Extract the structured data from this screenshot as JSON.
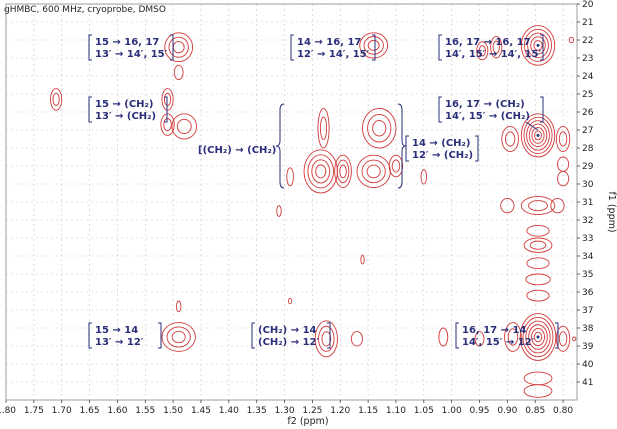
{
  "chart_data": {
    "type": "scatter",
    "title": "gHMBC, 600 MHz, cryoprobe, DMSO",
    "xlabel": "f2 (ppm)",
    "ylabel": "f1 (ppm)",
    "xlim": [
      1.8,
      0.775
    ],
    "ylim": [
      20,
      42
    ],
    "x_reversed": true,
    "y_reversed": true,
    "grid": true,
    "x_ticks": [
      "1.80",
      "1.75",
      "1.70",
      "1.65",
      "1.60",
      "1.55",
      "1.50",
      "1.45",
      "1.40",
      "1.35",
      "1.30",
      "1.25",
      "1.20",
      "1.15",
      "1.10",
      "1.05",
      "1.00",
      "0.95",
      "0.90",
      "0.85",
      "0.80"
    ],
    "y_ticks": [
      "20",
      "21",
      "22",
      "23",
      "24",
      "25",
      "26",
      "27",
      "28",
      "29",
      "30",
      "31",
      "32",
      "33",
      "34",
      "35",
      "36",
      "37",
      "38",
      "39",
      "40",
      "41"
    ],
    "peaks": [
      {
        "x": 1.49,
        "y": 22.4,
        "rx": 0.025,
        "ry": 0.8,
        "levels": 3
      },
      {
        "x": 1.49,
        "y": 23.8,
        "rx": 0.008,
        "ry": 0.4,
        "levels": 1
      },
      {
        "x": 1.14,
        "y": 22.3,
        "rx": 0.025,
        "ry": 0.7,
        "levels": 3
      },
      {
        "x": 0.945,
        "y": 22.6,
        "rx": 0.01,
        "ry": 0.5,
        "levels": 2
      },
      {
        "x": 0.92,
        "y": 22.4,
        "rx": 0.01,
        "ry": 0.6,
        "levels": 2
      },
      {
        "x": 0.785,
        "y": 22.0,
        "rx": 0.004,
        "ry": 0.15,
        "levels": 1
      },
      {
        "x": 1.71,
        "y": 25.3,
        "rx": 0.01,
        "ry": 0.6,
        "levels": 2
      },
      {
        "x": 1.51,
        "y": 25.3,
        "rx": 0.01,
        "ry": 0.6,
        "levels": 2
      },
      {
        "x": 1.51,
        "y": 26.7,
        "rx": 0.012,
        "ry": 0.6,
        "levels": 2
      },
      {
        "x": 1.48,
        "y": 26.8,
        "rx": 0.022,
        "ry": 0.7,
        "levels": 2
      },
      {
        "x": 1.23,
        "y": 26.9,
        "rx": 0.01,
        "ry": 1.1,
        "levels": 2
      },
      {
        "x": 1.13,
        "y": 26.9,
        "rx": 0.03,
        "ry": 1.1,
        "levels": 3
      },
      {
        "x": 1.29,
        "y": 29.6,
        "rx": 0.006,
        "ry": 0.5,
        "levels": 1
      },
      {
        "x": 1.235,
        "y": 29.3,
        "rx": 0.03,
        "ry": 1.2,
        "levels": 4
      },
      {
        "x": 1.195,
        "y": 29.3,
        "rx": 0.015,
        "ry": 0.9,
        "levels": 3
      },
      {
        "x": 1.14,
        "y": 29.3,
        "rx": 0.03,
        "ry": 0.9,
        "levels": 3
      },
      {
        "x": 1.1,
        "y": 29.0,
        "rx": 0.012,
        "ry": 0.6,
        "levels": 2
      },
      {
        "x": 1.05,
        "y": 29.6,
        "rx": 0.005,
        "ry": 0.4,
        "levels": 1
      },
      {
        "x": 1.31,
        "y": 31.5,
        "rx": 0.004,
        "ry": 0.3,
        "levels": 1
      },
      {
        "x": 1.16,
        "y": 34.2,
        "rx": 0.003,
        "ry": 0.25,
        "levels": 1
      },
      {
        "x": 1.49,
        "y": 36.8,
        "rx": 0.004,
        "ry": 0.3,
        "levels": 1
      },
      {
        "x": 1.29,
        "y": 36.5,
        "rx": 0.003,
        "ry": 0.15,
        "levels": 1
      },
      {
        "x": 1.49,
        "y": 38.5,
        "rx": 0.03,
        "ry": 0.8,
        "levels": 3
      },
      {
        "x": 1.225,
        "y": 38.6,
        "rx": 0.02,
        "ry": 1.0,
        "levels": 3
      },
      {
        "x": 1.17,
        "y": 38.6,
        "rx": 0.01,
        "ry": 0.4,
        "levels": 1
      },
      {
        "x": 1.015,
        "y": 38.5,
        "rx": 0.008,
        "ry": 0.5,
        "levels": 1
      },
      {
        "x": 0.95,
        "y": 38.6,
        "rx": 0.008,
        "ry": 0.4,
        "levels": 1
      },
      {
        "x": 0.78,
        "y": 38.6,
        "rx": 0.003,
        "ry": 0.1,
        "levels": 1
      },
      {
        "x": 0.845,
        "y": 22.3,
        "rx": 0.03,
        "ry": 1.1,
        "levels": 5
      },
      {
        "x": 0.845,
        "y": 27.3,
        "rx": 0.03,
        "ry": 1.2,
        "levels": 6
      },
      {
        "x": 0.845,
        "y": 38.5,
        "rx": 0.032,
        "ry": 1.3,
        "levels": 6
      },
      {
        "x": 0.845,
        "y": 31.2,
        "rx": 0.03,
        "ry": 0.5,
        "levels": 2
      },
      {
        "x": 0.845,
        "y": 32.6,
        "rx": 0.02,
        "ry": 0.3,
        "levels": 1
      },
      {
        "x": 0.845,
        "y": 33.4,
        "rx": 0.025,
        "ry": 0.4,
        "levels": 2
      },
      {
        "x": 0.845,
        "y": 34.4,
        "rx": 0.02,
        "ry": 0.3,
        "levels": 1
      },
      {
        "x": 0.845,
        "y": 35.3,
        "rx": 0.022,
        "ry": 0.3,
        "levels": 1
      },
      {
        "x": 0.845,
        "y": 36.2,
        "rx": 0.02,
        "ry": 0.3,
        "levels": 1
      },
      {
        "x": 0.845,
        "y": 40.8,
        "rx": 0.025,
        "ry": 0.35,
        "levels": 1
      },
      {
        "x": 0.845,
        "y": 41.5,
        "rx": 0.025,
        "ry": 0.35,
        "levels": 1
      },
      {
        "x": 0.9,
        "y": 31.2,
        "rx": 0.012,
        "ry": 0.4,
        "levels": 1
      },
      {
        "x": 0.81,
        "y": 31.2,
        "rx": 0.012,
        "ry": 0.4,
        "levels": 1
      },
      {
        "x": 0.895,
        "y": 27.5,
        "rx": 0.015,
        "ry": 0.7,
        "levels": 2
      },
      {
        "x": 0.8,
        "y": 27.5,
        "rx": 0.012,
        "ry": 0.7,
        "levels": 2
      },
      {
        "x": 0.89,
        "y": 38.5,
        "rx": 0.015,
        "ry": 0.8,
        "levels": 2
      },
      {
        "x": 0.8,
        "y": 38.6,
        "rx": 0.012,
        "ry": 0.7,
        "levels": 2
      },
      {
        "x": 0.8,
        "y": 28.9,
        "rx": 0.01,
        "ry": 0.4,
        "levels": 1
      },
      {
        "x": 0.8,
        "y": 29.7,
        "rx": 0.01,
        "ry": 0.4,
        "levels": 1
      }
    ],
    "annotations": [
      {
        "lines": [
          "15 → 16, 17",
          "13′ → 14′, 15′"
        ],
        "bracket": "both"
      },
      {
        "lines": [
          "14 → 16, 17",
          "12′ → 14′, 15′"
        ],
        "bracket": "both"
      },
      {
        "lines": [
          "16, 17 → 16, 17",
          "14′, 15′ → 14′, 15′"
        ],
        "bracket": "both"
      },
      {
        "lines": [
          "15 → (CH₂)",
          "13′ → (CH₂)"
        ],
        "bracket": "both"
      },
      {
        "lines": [
          "16, 17 → (CH₂)",
          "14′, 15′ → (CH₂)"
        ],
        "bracket": "both"
      },
      {
        "lines": [
          "[(CH₂) → (CH₂)"
        ],
        "bracket": "curly"
      },
      {
        "lines": [
          "14 → (CH₂)",
          "12′ → (CH₂)"
        ],
        "bracket": "both"
      },
      {
        "lines": [
          "15 → 14",
          "13′ → 12′"
        ],
        "bracket": "both"
      },
      {
        "lines": [
          "(CH₂) → 14",
          "(CH₂) → 12′"
        ],
        "bracket": "both"
      },
      {
        "lines": [
          "16, 17 → 14",
          "14′, 15′ → 12′"
        ],
        "bracket": "both"
      }
    ]
  }
}
